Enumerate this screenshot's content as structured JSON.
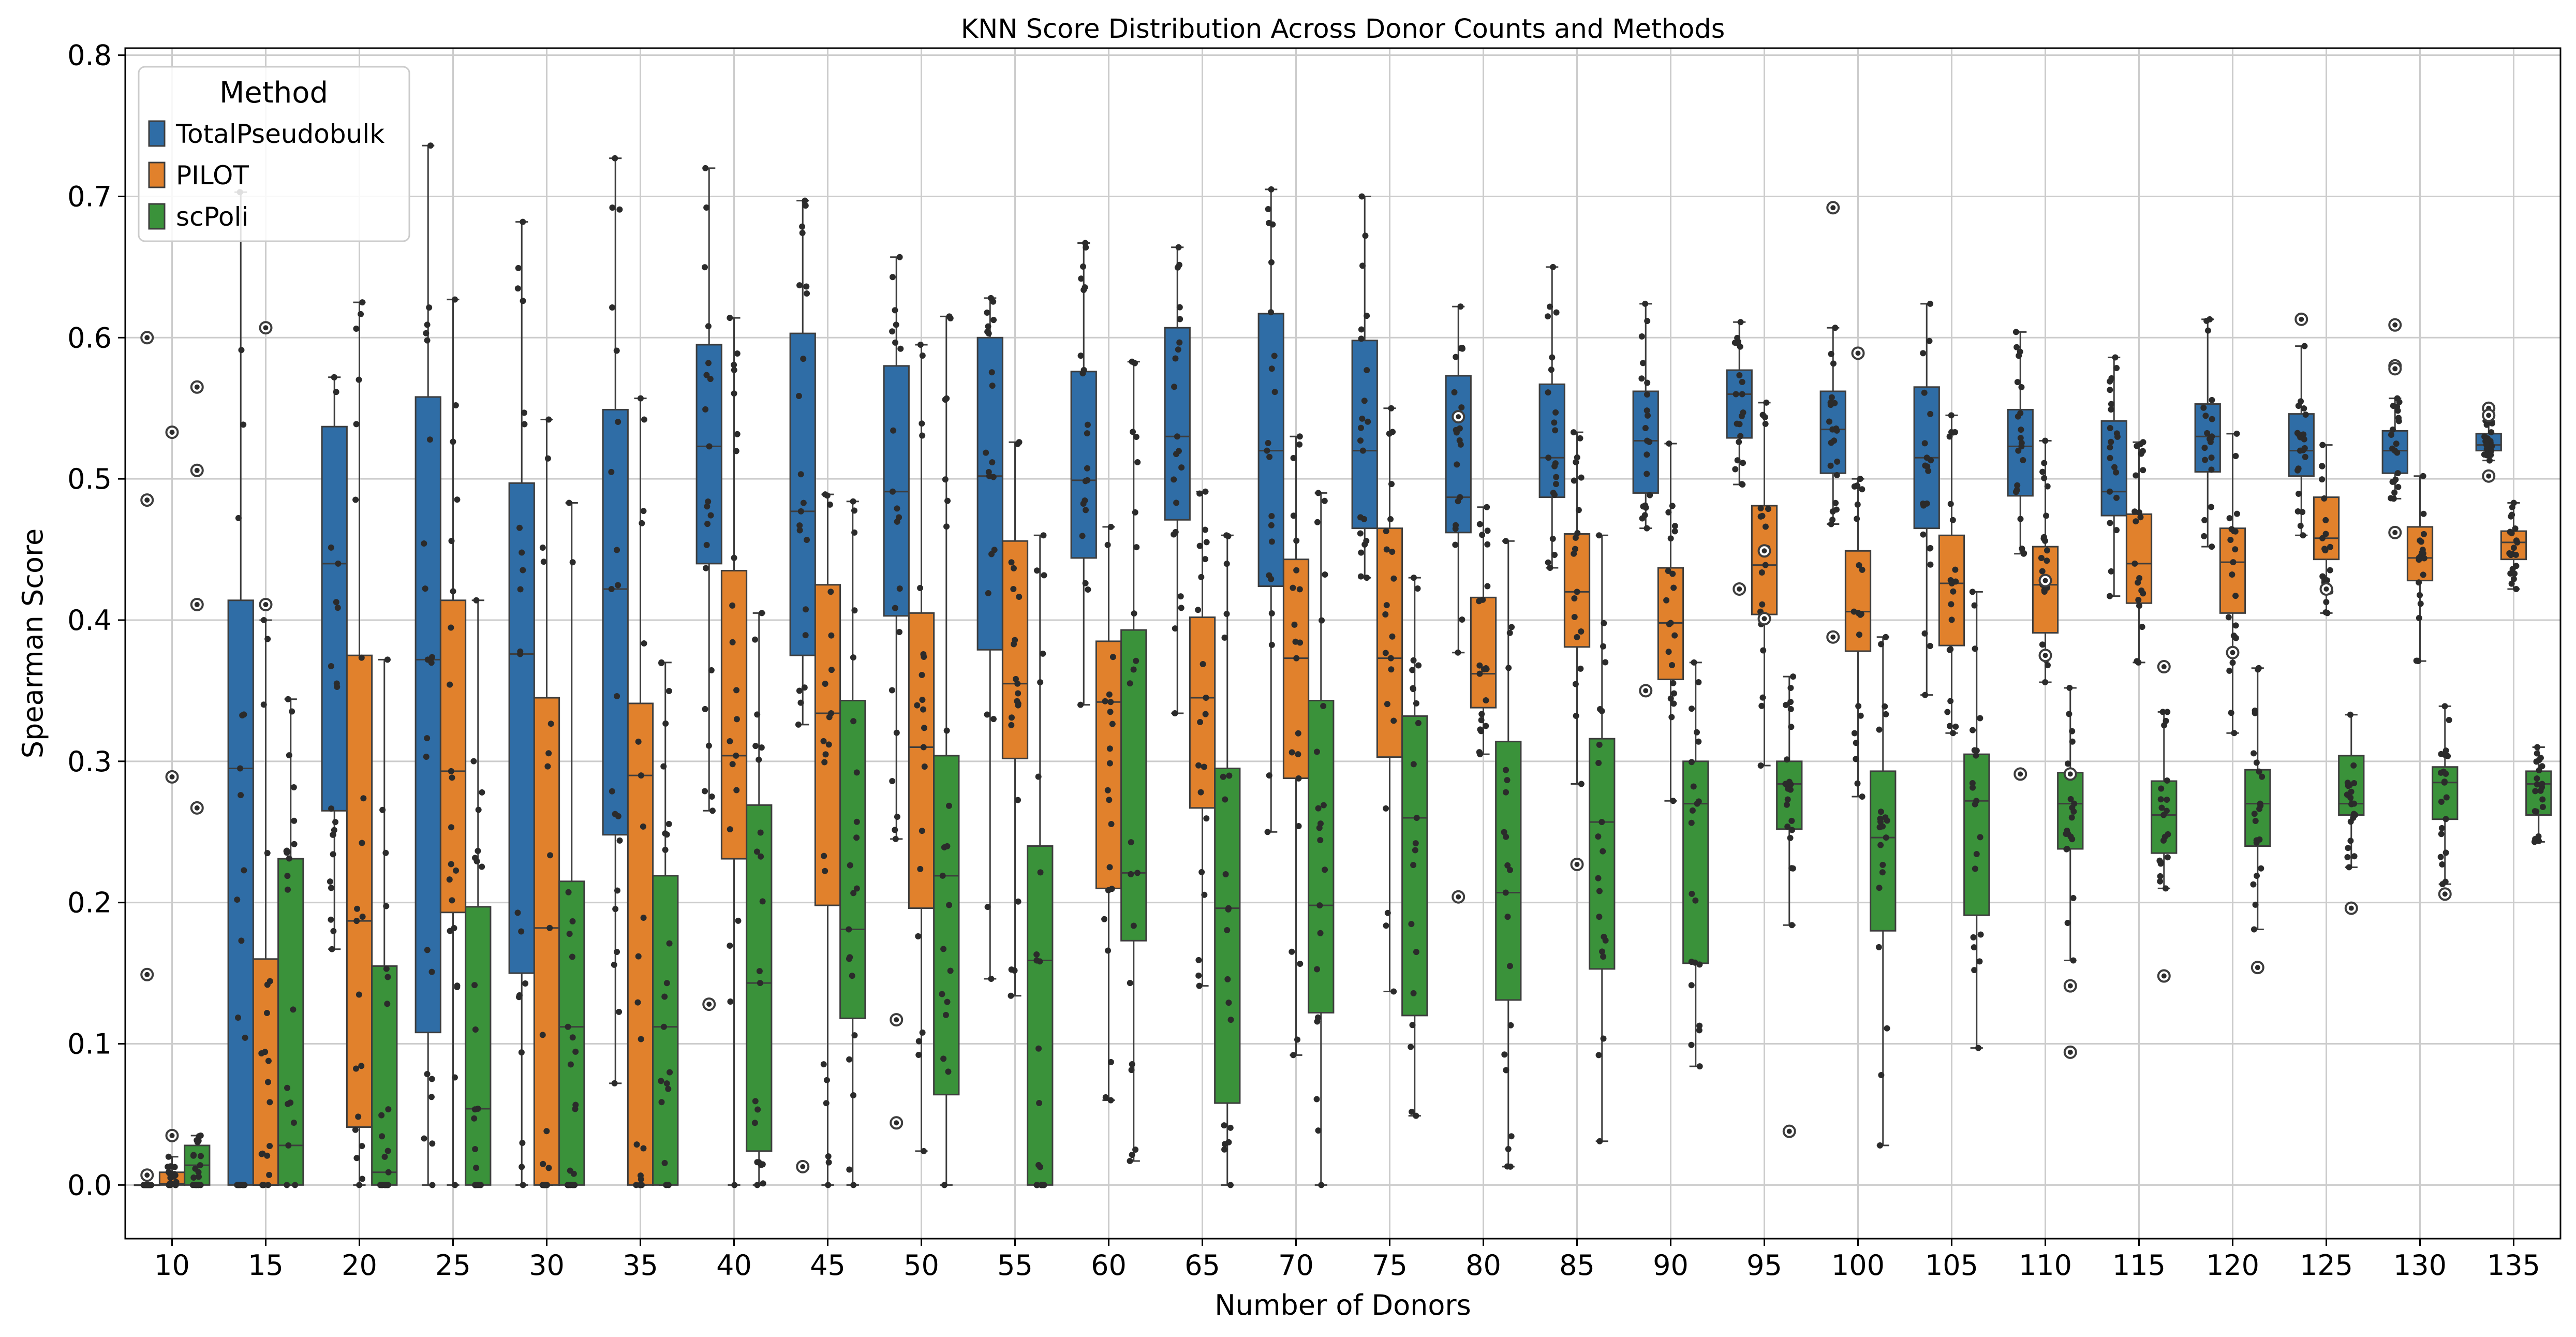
{
  "chart_data": {
    "type": "box",
    "title": "KNN Score Distribution Across Donor Counts and Methods",
    "xlabel": "Number of Donors",
    "ylabel": "Spearman Score",
    "ylim": [
      -0.038,
      0.805
    ],
    "yticks": [
      0.0,
      0.1,
      0.2,
      0.3,
      0.4,
      0.5,
      0.6,
      0.7,
      0.8
    ],
    "ytick_labels": [
      "0.0",
      "0.1",
      "0.2",
      "0.3",
      "0.4",
      "0.5",
      "0.6",
      "0.7",
      "0.8"
    ],
    "categories": [
      "10",
      "15",
      "20",
      "25",
      "30",
      "35",
      "40",
      "45",
      "50",
      "55",
      "60",
      "65",
      "70",
      "75",
      "80",
      "85",
      "90",
      "95",
      "100",
      "105",
      "110",
      "115",
      "120",
      "125",
      "130",
      "135"
    ],
    "grid": true,
    "legend": {
      "title": "Method",
      "placement": "top-left"
    },
    "series": [
      {
        "name": "TotalPseudobulk",
        "color": "#2f6da6",
        "boxes": [
          {
            "min": 0,
            "q1": 0,
            "median": 0,
            "q3": 0,
            "max": 0,
            "outliers": [
              0.6,
              0.485,
              0.149,
              0.007
            ]
          },
          {
            "min": 0,
            "q1": 0,
            "median": 0.295,
            "q3": 0.414,
            "max": 0.703,
            "outliers": []
          },
          {
            "min": 0.167,
            "q1": 0.265,
            "median": 0.44,
            "q3": 0.537,
            "max": 0.572,
            "outliers": []
          },
          {
            "min": 0,
            "q1": 0.108,
            "median": 0.372,
            "q3": 0.558,
            "max": 0.736,
            "outliers": []
          },
          {
            "min": 0,
            "q1": 0.15,
            "median": 0.376,
            "q3": 0.497,
            "max": 0.682,
            "outliers": []
          },
          {
            "min": 0.072,
            "q1": 0.248,
            "median": 0.422,
            "q3": 0.549,
            "max": 0.727,
            "outliers": []
          },
          {
            "min": 0.265,
            "q1": 0.44,
            "median": 0.523,
            "q3": 0.595,
            "max": 0.72,
            "outliers": [
              0.128
            ]
          },
          {
            "min": 0.326,
            "q1": 0.375,
            "median": 0.477,
            "q3": 0.603,
            "max": 0.697,
            "outliers": [
              0.013
            ]
          },
          {
            "min": 0.245,
            "q1": 0.403,
            "median": 0.491,
            "q3": 0.58,
            "max": 0.657,
            "outliers": [
              0.117,
              0.044
            ]
          },
          {
            "min": 0.146,
            "q1": 0.379,
            "median": 0.502,
            "q3": 0.6,
            "max": 0.628,
            "outliers": []
          },
          {
            "min": 0.34,
            "q1": 0.444,
            "median": 0.499,
            "q3": 0.576,
            "max": 0.667,
            "outliers": []
          },
          {
            "min": 0.334,
            "q1": 0.471,
            "median": 0.53,
            "q3": 0.607,
            "max": 0.664,
            "outliers": []
          },
          {
            "min": 0.25,
            "q1": 0.424,
            "median": 0.52,
            "q3": 0.617,
            "max": 0.705,
            "outliers": []
          },
          {
            "min": 0.43,
            "q1": 0.465,
            "median": 0.52,
            "q3": 0.598,
            "max": 0.7,
            "outliers": []
          },
          {
            "min": 0.377,
            "q1": 0.462,
            "median": 0.487,
            "q3": 0.573,
            "max": 0.622,
            "outliers": [
              0.544,
              0.204
            ]
          },
          {
            "min": 0.437,
            "q1": 0.487,
            "median": 0.515,
            "q3": 0.567,
            "max": 0.65,
            "outliers": []
          },
          {
            "min": 0.465,
            "q1": 0.49,
            "median": 0.527,
            "q3": 0.562,
            "max": 0.624,
            "outliers": [
              0.35
            ]
          },
          {
            "min": 0.496,
            "q1": 0.529,
            "median": 0.56,
            "q3": 0.577,
            "max": 0.611,
            "outliers": [
              0.422
            ]
          },
          {
            "min": 0.468,
            "q1": 0.504,
            "median": 0.535,
            "q3": 0.562,
            "max": 0.607,
            "outliers": [
              0.692,
              0.388
            ]
          },
          {
            "min": 0.347,
            "q1": 0.465,
            "median": 0.515,
            "q3": 0.565,
            "max": 0.624,
            "outliers": []
          },
          {
            "min": 0.447,
            "q1": 0.488,
            "median": 0.523,
            "q3": 0.549,
            "max": 0.604,
            "outliers": [
              0.291
            ]
          },
          {
            "min": 0.417,
            "q1": 0.474,
            "median": 0.491,
            "q3": 0.541,
            "max": 0.586,
            "outliers": []
          },
          {
            "min": 0.452,
            "q1": 0.505,
            "median": 0.53,
            "q3": 0.553,
            "max": 0.613,
            "outliers": []
          },
          {
            "min": 0.46,
            "q1": 0.502,
            "median": 0.52,
            "q3": 0.546,
            "max": 0.594,
            "outliers": [
              0.613
            ]
          },
          {
            "min": 0.486,
            "q1": 0.504,
            "median": 0.52,
            "q3": 0.534,
            "max": 0.557,
            "outliers": [
              0.609,
              0.58,
              0.578,
              0.462
            ]
          },
          {
            "min": 0.513,
            "q1": 0.52,
            "median": 0.524,
            "q3": 0.532,
            "max": 0.541,
            "outliers": [
              0.55,
              0.545,
              0.502
            ]
          }
        ]
      },
      {
        "name": "PILOT",
        "color": "#e1812c",
        "boxes": [
          {
            "min": 0,
            "q1": 0,
            "median": 0.001,
            "q3": 0.009,
            "max": 0.02,
            "outliers": [
              0.533,
              0.289,
              0.035
            ]
          },
          {
            "min": 0,
            "q1": 0,
            "median": 0,
            "q3": 0.16,
            "max": 0.4,
            "outliers": [
              0.607,
              0.411
            ]
          },
          {
            "min": 0,
            "q1": 0.041,
            "median": 0.187,
            "q3": 0.375,
            "max": 0.625,
            "outliers": []
          },
          {
            "min": 0,
            "q1": 0.193,
            "median": 0.293,
            "q3": 0.414,
            "max": 0.627,
            "outliers": []
          },
          {
            "min": 0,
            "q1": 0,
            "median": 0.182,
            "q3": 0.345,
            "max": 0.542,
            "outliers": []
          },
          {
            "min": 0,
            "q1": 0,
            "median": 0.29,
            "q3": 0.341,
            "max": 0.557,
            "outliers": []
          },
          {
            "min": 0,
            "q1": 0.231,
            "median": 0.304,
            "q3": 0.435,
            "max": 0.614,
            "outliers": []
          },
          {
            "min": 0,
            "q1": 0.198,
            "median": 0.334,
            "q3": 0.425,
            "max": 0.489,
            "outliers": []
          },
          {
            "min": 0.024,
            "q1": 0.196,
            "median": 0.31,
            "q3": 0.405,
            "max": 0.595,
            "outliers": []
          },
          {
            "min": 0.134,
            "q1": 0.302,
            "median": 0.355,
            "q3": 0.456,
            "max": 0.526,
            "outliers": []
          },
          {
            "min": 0.06,
            "q1": 0.21,
            "median": 0.342,
            "q3": 0.385,
            "max": 0.466,
            "outliers": []
          },
          {
            "min": 0.141,
            "q1": 0.267,
            "median": 0.345,
            "q3": 0.402,
            "max": 0.491,
            "outliers": []
          },
          {
            "min": 0.092,
            "q1": 0.288,
            "median": 0.373,
            "q3": 0.443,
            "max": 0.53,
            "outliers": []
          },
          {
            "min": 0.137,
            "q1": 0.303,
            "median": 0.373,
            "q3": 0.465,
            "max": 0.55,
            "outliers": []
          },
          {
            "min": 0.305,
            "q1": 0.338,
            "median": 0.362,
            "q3": 0.416,
            "max": 0.48,
            "outliers": []
          },
          {
            "min": 0.284,
            "q1": 0.381,
            "median": 0.42,
            "q3": 0.461,
            "max": 0.533,
            "outliers": [
              0.227
            ]
          },
          {
            "min": 0.272,
            "q1": 0.358,
            "median": 0.398,
            "q3": 0.437,
            "max": 0.525,
            "outliers": []
          },
          {
            "min": 0.297,
            "q1": 0.404,
            "median": 0.439,
            "q3": 0.481,
            "max": 0.554,
            "outliers": [
              0.449,
              0.401
            ]
          },
          {
            "min": 0.275,
            "q1": 0.378,
            "median": 0.406,
            "q3": 0.449,
            "max": 0.5,
            "outliers": [
              0.589
            ]
          },
          {
            "min": 0.32,
            "q1": 0.382,
            "median": 0.426,
            "q3": 0.46,
            "max": 0.545,
            "outliers": []
          },
          {
            "min": 0.356,
            "q1": 0.391,
            "median": 0.425,
            "q3": 0.452,
            "max": 0.527,
            "outliers": [
              0.428,
              0.375
            ]
          },
          {
            "min": 0.37,
            "q1": 0.412,
            "median": 0.44,
            "q3": 0.475,
            "max": 0.526,
            "outliers": []
          },
          {
            "min": 0.32,
            "q1": 0.405,
            "median": 0.441,
            "q3": 0.465,
            "max": 0.532,
            "outliers": [
              0.377
            ]
          },
          {
            "min": 0.405,
            "q1": 0.443,
            "median": 0.458,
            "q3": 0.487,
            "max": 0.524,
            "outliers": [
              0.422
            ]
          },
          {
            "min": 0.371,
            "q1": 0.428,
            "median": 0.444,
            "q3": 0.466,
            "max": 0.502,
            "outliers": []
          },
          {
            "min": 0.422,
            "q1": 0.443,
            "median": 0.455,
            "q3": 0.463,
            "max": 0.483,
            "outliers": []
          }
        ]
      },
      {
        "name": "scPoli",
        "color": "#3a923a",
        "boxes": [
          {
            "min": 0,
            "q1": 0,
            "median": 0.014,
            "q3": 0.028,
            "max": 0.035,
            "outliers": [
              0.565,
              0.506,
              0.411,
              0.267
            ]
          },
          {
            "min": 0,
            "q1": 0,
            "median": 0.028,
            "q3": 0.231,
            "max": 0.344,
            "outliers": []
          },
          {
            "min": 0,
            "q1": 0,
            "median": 0.009,
            "q3": 0.155,
            "max": 0.372,
            "outliers": []
          },
          {
            "min": 0,
            "q1": 0,
            "median": 0.054,
            "q3": 0.197,
            "max": 0.414,
            "outliers": []
          },
          {
            "min": 0,
            "q1": 0,
            "median": 0.112,
            "q3": 0.215,
            "max": 0.483,
            "outliers": []
          },
          {
            "min": 0,
            "q1": 0,
            "median": 0.112,
            "q3": 0.219,
            "max": 0.37,
            "outliers": []
          },
          {
            "min": 0,
            "q1": 0.024,
            "median": 0.143,
            "q3": 0.269,
            "max": 0.405,
            "outliers": []
          },
          {
            "min": 0,
            "q1": 0.118,
            "median": 0.181,
            "q3": 0.343,
            "max": 0.484,
            "outliers": []
          },
          {
            "min": 0,
            "q1": 0.064,
            "median": 0.219,
            "q3": 0.304,
            "max": 0.615,
            "outliers": []
          },
          {
            "min": 0,
            "q1": 0,
            "median": 0.159,
            "q3": 0.24,
            "max": 0.46,
            "outliers": []
          },
          {
            "min": 0.017,
            "q1": 0.173,
            "median": 0.221,
            "q3": 0.393,
            "max": 0.583,
            "outliers": []
          },
          {
            "min": 0,
            "q1": 0.058,
            "median": 0.196,
            "q3": 0.295,
            "max": 0.46,
            "outliers": []
          },
          {
            "min": 0,
            "q1": 0.122,
            "median": 0.198,
            "q3": 0.343,
            "max": 0.49,
            "outliers": []
          },
          {
            "min": 0.049,
            "q1": 0.12,
            "median": 0.26,
            "q3": 0.332,
            "max": 0.43,
            "outliers": []
          },
          {
            "min": 0.013,
            "q1": 0.131,
            "median": 0.207,
            "q3": 0.314,
            "max": 0.456,
            "outliers": []
          },
          {
            "min": 0.031,
            "q1": 0.153,
            "median": 0.257,
            "q3": 0.316,
            "max": 0.46,
            "outliers": []
          },
          {
            "min": 0.084,
            "q1": 0.157,
            "median": 0.27,
            "q3": 0.3,
            "max": 0.37,
            "outliers": []
          },
          {
            "min": 0.184,
            "q1": 0.252,
            "median": 0.284,
            "q3": 0.3,
            "max": 0.36,
            "outliers": [
              0.038
            ]
          },
          {
            "min": 0.028,
            "q1": 0.18,
            "median": 0.246,
            "q3": 0.293,
            "max": 0.388,
            "outliers": []
          },
          {
            "min": 0.097,
            "q1": 0.191,
            "median": 0.272,
            "q3": 0.305,
            "max": 0.42,
            "outliers": []
          },
          {
            "min": 0.159,
            "q1": 0.238,
            "median": 0.27,
            "q3": 0.292,
            "max": 0.352,
            "outliers": [
              0.291,
              0.141,
              0.094
            ]
          },
          {
            "min": 0.21,
            "q1": 0.235,
            "median": 0.262,
            "q3": 0.286,
            "max": 0.335,
            "outliers": [
              0.367,
              0.148
            ]
          },
          {
            "min": 0.181,
            "q1": 0.24,
            "median": 0.27,
            "q3": 0.294,
            "max": 0.366,
            "outliers": [
              0.154
            ]
          },
          {
            "min": 0.225,
            "q1": 0.262,
            "median": 0.27,
            "q3": 0.304,
            "max": 0.333,
            "outliers": [
              0.196
            ]
          },
          {
            "min": 0.213,
            "q1": 0.259,
            "median": 0.285,
            "q3": 0.296,
            "max": 0.339,
            "outliers": [
              0.206
            ]
          },
          {
            "min": 0.243,
            "q1": 0.262,
            "median": 0.284,
            "q3": 0.293,
            "max": 0.31,
            "outliers": []
          }
        ]
      }
    ]
  }
}
